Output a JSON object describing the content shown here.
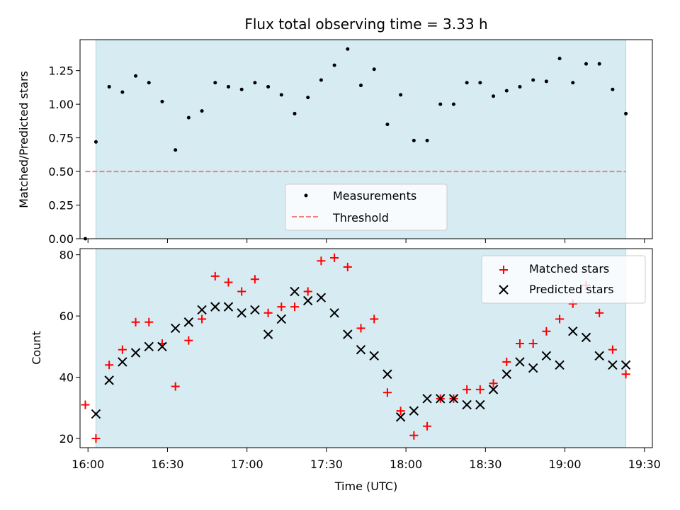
{
  "chart_data": [
    {
      "type": "scatter",
      "title": "Flux total observing time = 3.33 h",
      "ylabel": "Matched/Predicted stars",
      "ylim": [
        0,
        1.48
      ],
      "yticks": [
        0.0,
        0.25,
        0.5,
        0.75,
        1.0,
        1.25
      ],
      "ytick_labels": [
        "0.00",
        "0.25",
        "0.50",
        "0.75",
        "1.00",
        "1.25"
      ],
      "xlim": [
        "15:57",
        "19:33"
      ],
      "xticks": [
        "16:00",
        "16:30",
        "17:00",
        "17:30",
        "18:00",
        "18:30",
        "19:00",
        "19:30"
      ],
      "observing_window": [
        "16:03",
        "19:23"
      ],
      "window_color": "#add8e6",
      "legend_position": "lower center",
      "series": [
        {
          "name": "Measurements",
          "color": "#000000",
          "marker": "dot",
          "x": [
            "15:59",
            "16:03",
            "16:08",
            "16:13",
            "16:18",
            "16:23",
            "16:28",
            "16:33",
            "16:38",
            "16:43",
            "16:48",
            "16:53",
            "16:58",
            "17:03",
            "17:08",
            "17:13",
            "17:18",
            "17:23",
            "17:28",
            "17:33",
            "17:38",
            "17:43",
            "17:48",
            "17:53",
            "17:58",
            "18:03",
            "18:08",
            "18:13",
            "18:18",
            "18:23",
            "18:28",
            "18:33",
            "18:38",
            "18:43",
            "18:48",
            "18:53",
            "18:58",
            "19:03",
            "19:08",
            "19:13",
            "19:18",
            "19:23"
          ],
          "y": [
            0.0,
            0.72,
            1.13,
            1.09,
            1.21,
            1.16,
            1.02,
            0.66,
            0.9,
            0.95,
            1.16,
            1.13,
            1.11,
            1.16,
            1.13,
            1.07,
            0.93,
            1.05,
            1.18,
            1.29,
            1.41,
            1.14,
            1.26,
            0.85,
            1.07,
            0.73,
            0.73,
            1.0,
            1.0,
            1.16,
            1.16,
            1.06,
            1.1,
            1.13,
            1.18,
            1.17,
            1.34,
            1.16,
            1.3,
            1.3,
            1.11,
            0.93
          ]
        },
        {
          "name": "Threshold",
          "color": "#f08080",
          "style": "dashed",
          "x": [
            "15:59",
            "19:23"
          ],
          "y": [
            0.5,
            0.5
          ]
        }
      ]
    },
    {
      "type": "scatter",
      "xlabel": "Time (UTC)",
      "ylabel": "Count",
      "ylim": [
        17,
        82
      ],
      "yticks": [
        20,
        40,
        60,
        80
      ],
      "ytick_labels": [
        "20",
        "40",
        "60",
        "80"
      ],
      "xlim": [
        "15:57",
        "19:33"
      ],
      "xticks": [
        "16:00",
        "16:30",
        "17:00",
        "17:30",
        "18:00",
        "18:30",
        "19:00",
        "19:30"
      ],
      "xtick_labels": [
        "16:00",
        "16:30",
        "17:00",
        "17:30",
        "18:00",
        "18:30",
        "19:00",
        "19:30"
      ],
      "observing_window": [
        "16:03",
        "19:23"
      ],
      "window_color": "#add8e6",
      "legend_position": "upper right",
      "series": [
        {
          "name": "Matched stars",
          "color": "#ff0000",
          "marker": "plus",
          "x": [
            "15:59",
            "16:03",
            "16:08",
            "16:13",
            "16:18",
            "16:23",
            "16:28",
            "16:33",
            "16:38",
            "16:43",
            "16:48",
            "16:53",
            "16:58",
            "17:03",
            "17:08",
            "17:13",
            "17:18",
            "17:23",
            "17:28",
            "17:33",
            "17:38",
            "17:43",
            "17:48",
            "17:53",
            "17:58",
            "18:03",
            "18:08",
            "18:13",
            "18:18",
            "18:23",
            "18:28",
            "18:33",
            "18:38",
            "18:43",
            "18:48",
            "18:53",
            "18:58",
            "19:03",
            "19:08",
            "19:13",
            "19:18",
            "19:23"
          ],
          "y": [
            31,
            20,
            44,
            49,
            58,
            58,
            51,
            37,
            52,
            59,
            73,
            71,
            68,
            72,
            61,
            63,
            63,
            68,
            78,
            79,
            76,
            56,
            59,
            35,
            29,
            21,
            24,
            33,
            33,
            36,
            36,
            38,
            45,
            51,
            51,
            55,
            59,
            64,
            70,
            61,
            49,
            41
          ]
        },
        {
          "name": "Predicted stars",
          "color": "#000000",
          "marker": "x",
          "x": [
            "16:03",
            "16:08",
            "16:13",
            "16:18",
            "16:23",
            "16:28",
            "16:33",
            "16:38",
            "16:43",
            "16:48",
            "16:53",
            "16:58",
            "17:03",
            "17:08",
            "17:13",
            "17:18",
            "17:23",
            "17:28",
            "17:33",
            "17:38",
            "17:43",
            "17:48",
            "17:53",
            "17:58",
            "18:03",
            "18:08",
            "18:13",
            "18:18",
            "18:23",
            "18:28",
            "18:33",
            "18:38",
            "18:43",
            "18:48",
            "18:53",
            "18:58",
            "19:03",
            "19:08",
            "19:13",
            "19:18",
            "19:23"
          ],
          "y": [
            28,
            39,
            45,
            48,
            50,
            50,
            56,
            58,
            62,
            63,
            63,
            61,
            62,
            54,
            59,
            68,
            65,
            66,
            61,
            54,
            49,
            47,
            41,
            27,
            29,
            33,
            33,
            33,
            31,
            31,
            36,
            41,
            45,
            43,
            47,
            44,
            55,
            53,
            47,
            44,
            44
          ]
        }
      ]
    }
  ]
}
